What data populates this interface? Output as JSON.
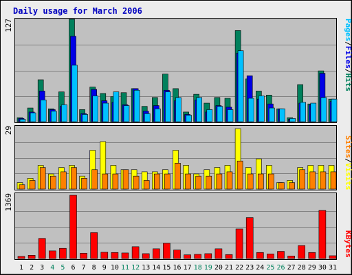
{
  "title": "Daily usage for March 2006",
  "colors": {
    "background": "#ececec",
    "plot_bg": "#c0c0c0",
    "grid": "#808080",
    "hits": "#00805c",
    "files": "#0000e6",
    "pages": "#00c0ff",
    "visits": "#ffff00",
    "sites": "#ff8000",
    "kbytes": "#ff0000",
    "title": "#0000c0",
    "weekend_label": "#00805c",
    "weekday_label": "#000000"
  },
  "panels": {
    "top": {
      "max_label": "127",
      "legend": {
        "pages": "Pages",
        "files": "Files",
        "hits": "Hits",
        "sep": "/"
      }
    },
    "middle": {
      "max_label": "29",
      "legend": {
        "sites": "Sites",
        "visits": "Visits",
        "sep": "/"
      }
    },
    "bottom": {
      "max_label": "1369",
      "legend": {
        "kbytes": "KBytes"
      }
    }
  },
  "chart_data": [
    {
      "type": "bar",
      "title": "Daily usage for March 2006",
      "panel": "hits-files-pages",
      "categories": [
        "1",
        "2",
        "3",
        "4",
        "5",
        "6",
        "7",
        "8",
        "9",
        "10",
        "11",
        "12",
        "13",
        "14",
        "15",
        "16",
        "17",
        "18",
        "19",
        "20",
        "21",
        "22",
        "23",
        "24",
        "25",
        "26",
        "27",
        "28",
        "29",
        "30",
        "31"
      ],
      "weekend_days": [
        "4",
        "5",
        "11",
        "12",
        "18",
        "19",
        "25",
        "26"
      ],
      "ylim": [
        0,
        127
      ],
      "series": [
        {
          "name": "Hits",
          "values": [
            5,
            17,
            52,
            16,
            37,
            127,
            15,
            43,
            35,
            31,
            36,
            41,
            19,
            30,
            59,
            41,
            12,
            34,
            23,
            30,
            29,
            113,
            53,
            38,
            33,
            16,
            5,
            46,
            22,
            63,
            28
          ]
        },
        {
          "name": "Files",
          "values": [
            4,
            12,
            38,
            15,
            19,
            106,
            10,
            40,
            26,
            24,
            21,
            41,
            13,
            20,
            39,
            26,
            9,
            27,
            12,
            20,
            18,
            85,
            57,
            28,
            22,
            16,
            3,
            23,
            21,
            60,
            25
          ]
        },
        {
          "name": "Pages",
          "values": [
            3,
            11,
            27,
            13,
            21,
            70,
            9,
            32,
            23,
            37,
            20,
            39,
            10,
            16,
            37,
            30,
            8,
            30,
            15,
            19,
            15,
            88,
            29,
            32,
            17,
            16,
            4,
            24,
            23,
            30,
            28
          ]
        }
      ]
    },
    {
      "type": "bar",
      "panel": "visits-sites",
      "categories": [
        "1",
        "2",
        "3",
        "4",
        "5",
        "6",
        "7",
        "8",
        "9",
        "10",
        "11",
        "12",
        "13",
        "14",
        "15",
        "16",
        "17",
        "18",
        "19",
        "20",
        "21",
        "22",
        "23",
        "24",
        "25",
        "26",
        "27",
        "28",
        "29",
        "30",
        "31"
      ],
      "ylim": [
        0,
        29
      ],
      "series": [
        {
          "name": "Visits",
          "values": [
            3,
            5,
            11,
            7,
            10,
            11,
            6,
            18,
            22,
            11,
            9,
            9,
            8,
            8,
            9,
            18,
            11,
            7,
            9,
            10,
            11,
            28,
            10,
            14,
            11,
            3,
            4,
            10,
            11,
            11,
            11
          ]
        },
        {
          "name": "Sites",
          "values": [
            2,
            4,
            10,
            6,
            8,
            10,
            5,
            9,
            7,
            7,
            9,
            6,
            4,
            7,
            7,
            12,
            7,
            6,
            6,
            7,
            8,
            13,
            7,
            7,
            7,
            3,
            3,
            9,
            8,
            8,
            8
          ]
        }
      ]
    },
    {
      "type": "bar",
      "panel": "kbytes",
      "categories": [
        "1",
        "2",
        "3",
        "4",
        "5",
        "6",
        "7",
        "8",
        "9",
        "10",
        "11",
        "12",
        "13",
        "14",
        "15",
        "16",
        "17",
        "18",
        "19",
        "20",
        "21",
        "22",
        "23",
        "24",
        "25",
        "26",
        "27",
        "28",
        "29",
        "30",
        "31"
      ],
      "ylim": [
        0,
        1369
      ],
      "series": [
        {
          "name": "KBytes",
          "values": [
            45,
            70,
            435,
            165,
            220,
            1369,
            115,
            560,
            135,
            130,
            120,
            255,
            105,
            210,
            330,
            185,
            80,
            90,
            105,
            210,
            85,
            640,
            885,
            130,
            100,
            155,
            55,
            280,
            130,
            1040,
            60
          ]
        }
      ]
    }
  ]
}
